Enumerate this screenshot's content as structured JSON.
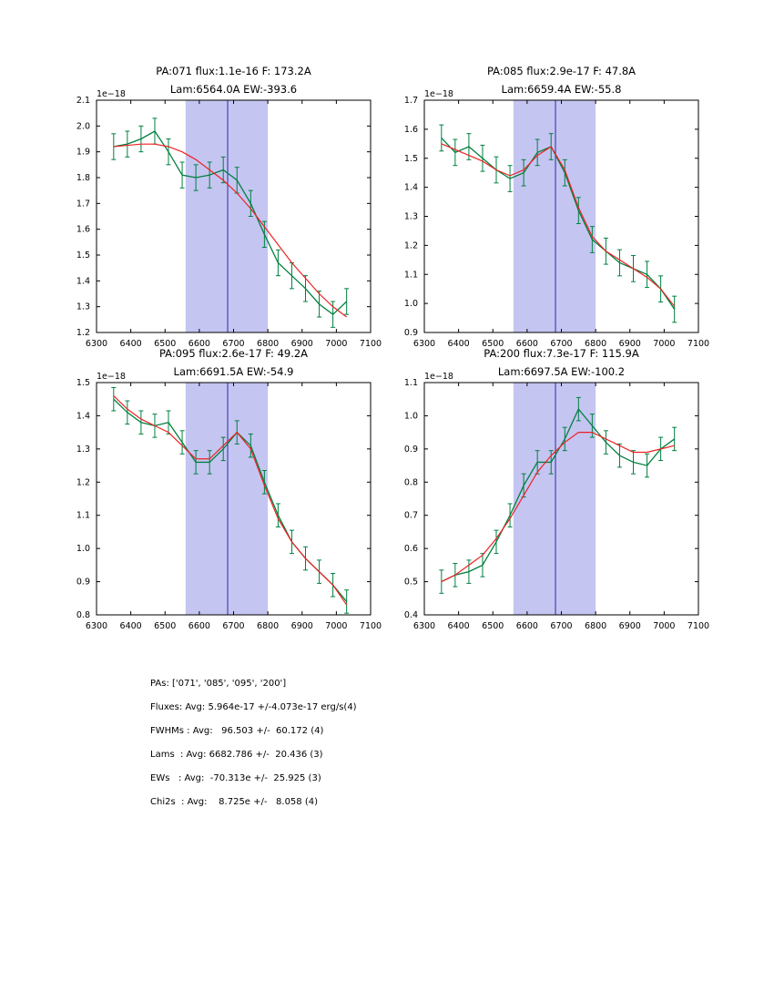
{
  "colors": {
    "data": "#008040",
    "fit": "#ee2222",
    "band": "#c5c5f2",
    "vline": "#2a2aa5",
    "frame": "#000000",
    "background": "#ffffff"
  },
  "summary": {
    "lines": [
      "PAs: ['071', '085', '095', '200']",
      "Fluxes: Avg: 5.964e-17 +/-4.073e-17 erg/s(4)",
      "FWHMs : Avg:   96.503 +/-  60.172 (4)",
      "Lams  : Avg: 6682.786 +/-  20.436 (3)",
      "EWs   : Avg:  -70.313e +/-  25.925 (3)",
      "Chi2s  : Avg:    8.725e +/-   8.058 (4)"
    ]
  },
  "chart_data": [
    {
      "type": "line",
      "id": "PA071",
      "title1": "PA:071 flux:1.1e-16 F: 173.2A",
      "title2": "Lam:6564.0A EW:-393.6",
      "offset_label": "1e−18",
      "xlabel": "",
      "ylabel": "",
      "xlim": [
        6300,
        7100
      ],
      "ylim": [
        1.2,
        2.1
      ],
      "xticks": [
        6300,
        6400,
        6500,
        6600,
        6700,
        6800,
        6900,
        7000,
        7100
      ],
      "yticks": [
        1.2,
        1.3,
        1.4,
        1.5,
        1.6,
        1.7,
        1.8,
        1.9,
        2.0,
        2.1
      ],
      "band": [
        6560,
        6800
      ],
      "vline": 6682.8,
      "x": [
        6350,
        6390,
        6430,
        6470,
        6510,
        6550,
        6590,
        6630,
        6670,
        6710,
        6750,
        6790,
        6830,
        6870,
        6910,
        6950,
        6990,
        7030
      ],
      "data": [
        1.92,
        1.93,
        1.95,
        1.98,
        1.9,
        1.81,
        1.8,
        1.81,
        1.83,
        1.79,
        1.7,
        1.58,
        1.47,
        1.42,
        1.37,
        1.31,
        1.27,
        1.32
      ],
      "yerr": 0.05,
      "fit": [
        1.92,
        1.925,
        1.93,
        1.93,
        1.92,
        1.9,
        1.87,
        1.83,
        1.79,
        1.74,
        1.68,
        1.61,
        1.54,
        1.47,
        1.41,
        1.35,
        1.3,
        1.26
      ]
    },
    {
      "type": "line",
      "id": "PA085",
      "title1": "PA:085 flux:2.9e-17 F: 47.8A",
      "title2": "Lam:6659.4A EW:-55.8",
      "offset_label": "1e−18",
      "xlabel": "",
      "ylabel": "",
      "xlim": [
        6300,
        7100
      ],
      "ylim": [
        0.9,
        1.7
      ],
      "xticks": [
        6300,
        6400,
        6500,
        6600,
        6700,
        6800,
        6900,
        7000,
        7100
      ],
      "yticks": [
        0.9,
        1.0,
        1.1,
        1.2,
        1.3,
        1.4,
        1.5,
        1.6,
        1.7
      ],
      "band": [
        6560,
        6800
      ],
      "vline": 6682.8,
      "x": [
        6350,
        6390,
        6430,
        6470,
        6510,
        6550,
        6590,
        6630,
        6670,
        6710,
        6750,
        6790,
        6830,
        6870,
        6910,
        6950,
        6990,
        7030
      ],
      "data": [
        1.57,
        1.52,
        1.54,
        1.5,
        1.46,
        1.43,
        1.45,
        1.52,
        1.54,
        1.45,
        1.32,
        1.22,
        1.18,
        1.14,
        1.12,
        1.1,
        1.05,
        0.98
      ],
      "yerr": 0.045,
      "fit": [
        1.55,
        1.53,
        1.51,
        1.49,
        1.46,
        1.44,
        1.46,
        1.51,
        1.54,
        1.46,
        1.33,
        1.23,
        1.18,
        1.15,
        1.12,
        1.09,
        1.05,
        0.99
      ]
    },
    {
      "type": "line",
      "id": "PA095",
      "title1": "PA:095 flux:2.6e-17 F: 49.2A",
      "title2": "Lam:6691.5A EW:-54.9",
      "offset_label": "1e−18",
      "xlabel": "",
      "ylabel": "",
      "xlim": [
        6300,
        7100
      ],
      "ylim": [
        0.8,
        1.5
      ],
      "xticks": [
        6300,
        6400,
        6500,
        6600,
        6700,
        6800,
        6900,
        7000,
        7100
      ],
      "yticks": [
        0.8,
        0.9,
        1.0,
        1.1,
        1.2,
        1.3,
        1.4,
        1.5
      ],
      "band": [
        6560,
        6800
      ],
      "vline": 6682.8,
      "x": [
        6350,
        6390,
        6430,
        6470,
        6510,
        6550,
        6590,
        6630,
        6670,
        6710,
        6750,
        6790,
        6830,
        6870,
        6910,
        6950,
        6990,
        7030
      ],
      "data": [
        1.45,
        1.41,
        1.38,
        1.37,
        1.38,
        1.32,
        1.26,
        1.26,
        1.3,
        1.35,
        1.31,
        1.2,
        1.1,
        1.02,
        0.97,
        0.93,
        0.89,
        0.84
      ],
      "yerr": 0.035,
      "fit": [
        1.46,
        1.42,
        1.39,
        1.37,
        1.35,
        1.31,
        1.27,
        1.27,
        1.31,
        1.35,
        1.3,
        1.19,
        1.09,
        1.02,
        0.97,
        0.93,
        0.89,
        0.83
      ]
    },
    {
      "type": "line",
      "id": "PA200",
      "title1": "PA:200 flux:7.3e-17 F: 115.9A",
      "title2": "Lam:6697.5A EW:-100.2",
      "offset_label": "1e−18",
      "xlabel": "",
      "ylabel": "",
      "xlim": [
        6300,
        7100
      ],
      "ylim": [
        0.4,
        1.1
      ],
      "xticks": [
        6300,
        6400,
        6500,
        6600,
        6700,
        6800,
        6900,
        7000,
        7100
      ],
      "yticks": [
        0.4,
        0.5,
        0.6,
        0.7,
        0.8,
        0.9,
        1.0,
        1.1
      ],
      "band": [
        6560,
        6800
      ],
      "vline": 6682.8,
      "x": [
        6350,
        6390,
        6430,
        6470,
        6510,
        6550,
        6590,
        6630,
        6670,
        6710,
        6750,
        6790,
        6830,
        6870,
        6910,
        6950,
        6990,
        7030
      ],
      "data": [
        0.5,
        0.52,
        0.53,
        0.55,
        0.62,
        0.7,
        0.79,
        0.86,
        0.86,
        0.93,
        1.02,
        0.97,
        0.92,
        0.88,
        0.86,
        0.85,
        0.9,
        0.93
      ],
      "yerr": 0.035,
      "fit": [
        0.5,
        0.52,
        0.55,
        0.58,
        0.63,
        0.69,
        0.76,
        0.83,
        0.88,
        0.92,
        0.95,
        0.95,
        0.93,
        0.91,
        0.89,
        0.89,
        0.9,
        0.91
      ]
    }
  ]
}
